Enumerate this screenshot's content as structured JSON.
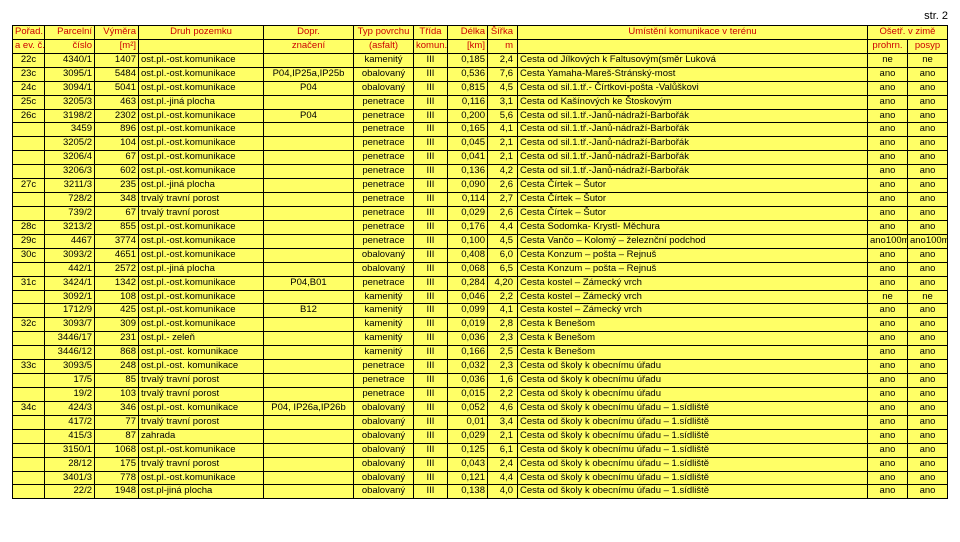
{
  "page": {
    "number": "str. 2"
  },
  "style": {
    "bg": "#ffff66",
    "headerText": "#cc0000",
    "bodyText": "#000000",
    "border": "#000000",
    "fontSize": 9.5
  },
  "header": {
    "r1": {
      "c0": "Pořad.",
      "c1": "Parcelní",
      "c2": "Výměra",
      "c3": "Druh pozemku",
      "c4": "Dopr.",
      "c5": "Typ povrchu",
      "c6": "Třída",
      "c7": "Délka",
      "c8": "Šířka",
      "c9": "Umístění komunikace v terénu",
      "c10": "Ošetř. v zimě"
    },
    "r2": {
      "c0": "a ev. č.",
      "c1": "číslo",
      "c2": "[m²]",
      "c4": "značení",
      "c5": "(asfalt)",
      "c6": "komun.",
      "c7": "[km]",
      "c8": "m",
      "c10": "prohrn.",
      "c11": "posyp"
    }
  },
  "columns": [
    "ev",
    "parc",
    "vym",
    "druh",
    "dopr",
    "typ",
    "trida",
    "delka",
    "sirka",
    "umist",
    "os1",
    "os2"
  ],
  "rows": [
    [
      "22c",
      "4340/1",
      "1407",
      "ost.pl.-ost.komunikace",
      "",
      "kamenitý",
      "III",
      "0,185",
      "2,4",
      "Cesta od Jílkových k Faltusovým(směr Luková",
      "ne",
      "ne"
    ],
    [
      "23c",
      "3095/1",
      "5484",
      "ost.pl.-ost.komunikace",
      "P04,IP25a,IP25b",
      "obalovaný",
      "III",
      "0,536",
      "7,6",
      "Cesta Yamaha-Mareš-Stránský-most",
      "ano",
      "ano"
    ],
    [
      "24c",
      "3094/1",
      "5041",
      "ost.pl.-ost.komunikace",
      "P04",
      "obalovaný",
      "III",
      "0,815",
      "4,5",
      "Cesta od sil.1.tř.- Čírtkovi-pošta -Valůškovi",
      "ano",
      "ano"
    ],
    [
      "25c",
      "3205/3",
      "463",
      "ost.pl.-jiná plocha",
      "",
      "penetrace",
      "III",
      "0,116",
      "3,1",
      "Cesta od Kašínových ke Štoskovým",
      "ano",
      "ano"
    ],
    [
      "26c",
      "3198/2",
      "2302",
      "ost.pl.-ost.komunikace",
      "P04",
      "penetrace",
      "III",
      "0,200",
      "5,6",
      "Cesta od sil.1.tř.-Janů-nádraží-Barbořák",
      "ano",
      "ano"
    ],
    [
      "",
      "3459",
      "896",
      "ost.pl.-ost.komunikace",
      "",
      "penetrace",
      "III",
      "0,165",
      "4,1",
      "Cesta od sil.1.tř.-Janů-nádraží-Barbořák",
      "ano",
      "ano"
    ],
    [
      "",
      "3205/2",
      "104",
      "ost.pl.-ost.komunikace",
      "",
      "penetrace",
      "III",
      "0,045",
      "2,1",
      "Cesta od sil.1.tř.-Janů-nádraží-Barbořák",
      "ano",
      "ano"
    ],
    [
      "",
      "3206/4",
      "67",
      "ost.pl.-ost.komunikace",
      "",
      "penetrace",
      "III",
      "0,041",
      "2,1",
      "Cesta od sil.1.tř.-Janů-nádraží-Barbořák",
      "ano",
      "ano"
    ],
    [
      "",
      "3206/3",
      "602",
      "ost.pl.-ost.komunikace",
      "",
      "penetrace",
      "III",
      "0,136",
      "4,2",
      "Cesta od sil.1.tř.-Janů-nádraží-Barbořák",
      "ano",
      "ano"
    ],
    [
      "27c",
      "3211/3",
      "235",
      "ost.pl.-jiná plocha",
      "",
      "penetrace",
      "III",
      "0,090",
      "2,6",
      "Cesta Čírtek – Šutor",
      "ano",
      "ano"
    ],
    [
      "",
      "728/2",
      "348",
      "trvalý travní porost",
      "",
      "penetrace",
      "III",
      "0,114",
      "2,7",
      "Cesta Čírtek – Šutor",
      "ano",
      "ano"
    ],
    [
      "",
      "739/2",
      "67",
      "trvalý travní porost",
      "",
      "penetrace",
      "III",
      "0,029",
      "2,6",
      "Cesta Čírtek – Šutor",
      "ano",
      "ano"
    ],
    [
      "28c",
      "3213/2",
      "855",
      "ost.pl.-ost.komunikace",
      "",
      "penetrace",
      "III",
      "0,176",
      "4,4",
      "Cesta Sodomka- Krystl- Měchura",
      "ano",
      "ano"
    ],
    [
      "29c",
      "4467",
      "3774",
      "ost.pl.-ost.komunikace",
      "",
      "penetrace",
      "III",
      "0,100",
      "4,5",
      "Cesta Vančo – Kolomý – železnční podchod",
      "ano100m",
      "ano100m"
    ],
    [
      "30c",
      "3093/2",
      "4651",
      "ost.pl.-ost.komunikace",
      "",
      "obalovaný",
      "III",
      "0,408",
      "6,0",
      "Cesta Konzum – pošta – Rejnuš",
      "ano",
      "ano"
    ],
    [
      "",
      "442/1",
      "2572",
      "ost.pl.-jiná plocha",
      "",
      "obalovaný",
      "III",
      "0,068",
      "6,5",
      "Cesta Konzum – pošta – Rejnuš",
      "ano",
      "ano"
    ],
    [
      "31c",
      "3424/1",
      "1342",
      "ost.pl.-ost.komunikace",
      "P04,B01",
      "penetrace",
      "III",
      "0,284",
      "4,20",
      "Cesta kostel – Zámecký vrch",
      "ano",
      "ano"
    ],
    [
      "",
      "3092/1",
      "108",
      "ost.pl.-ost.komunikace",
      "",
      "kamenitý",
      "III",
      "0,046",
      "2,2",
      "Cesta kostel – Zámecký vrch",
      "ne",
      "ne"
    ],
    [
      "",
      "1712/9",
      "425",
      "ost.pl.-ost.komunikace",
      "B12",
      "kamenitý",
      "III",
      "0,099",
      "4,1",
      "Cesta kostel – Zámecký vrch",
      "ano",
      "ano"
    ],
    [
      "32c",
      "3093/7",
      "309",
      "ost.pl.-ost.komunikace",
      "",
      "kamenitý",
      "III",
      "0,019",
      "2,8",
      "Cesta k Benešom",
      "ano",
      "ano"
    ],
    [
      "",
      "3446/17",
      "231",
      "ost.pl.- zeleň",
      "",
      "kamenitý",
      "III",
      "0,036",
      "2,3",
      "Cesta k Benešom",
      "ano",
      "ano"
    ],
    [
      "",
      "3446/12",
      "868",
      "ost.pl.-ost. komunikace",
      "",
      "kamenitý",
      "III",
      "0,166",
      "2,5",
      "Cesta k Benešom",
      "ano",
      "ano"
    ],
    [
      "33c",
      "3093/5",
      "248",
      "ost.pl.-ost. komunikace",
      "",
      "penetrace",
      "III",
      "0,032",
      "2,3",
      "Cesta od školy k obecnímu úřadu",
      "ano",
      "ano"
    ],
    [
      "",
      "17/5",
      "85",
      "trvalý travní porost",
      "",
      "penetrace",
      "III",
      "0,036",
      "1,6",
      "Cesta od školy k obecnímu úřadu",
      "ano",
      "ano"
    ],
    [
      "",
      "19/2",
      "103",
      "trvalý travní porost",
      "",
      "penetrace",
      "III",
      "0,015",
      "2,2",
      "Cesta od školy k obecnímu úřadu",
      "ano",
      "ano"
    ],
    [
      "34c",
      "424/3",
      "346",
      "ost.pl.-ost. komunikace",
      "P04, IP26a,IP26b",
      "obalovaný",
      "III",
      "0,052",
      "4,6",
      "Cesta od školy k obecnímu úřadu – 1.sídliště",
      "ano",
      "ano"
    ],
    [
      "",
      "417/2",
      "77",
      "trvalý travní porost",
      "",
      "obalovaný",
      "III",
      "0,01",
      "3,4",
      "Cesta od školy k obecnímu úřadu – 1.sídliště",
      "ano",
      "ano"
    ],
    [
      "",
      "415/3",
      "87",
      "zahrada",
      "",
      "obalovaný",
      "III",
      "0,029",
      "2,1",
      "Cesta od školy k obecnímu úřadu – 1.sídliště",
      "ano",
      "ano"
    ],
    [
      "",
      "3150/1",
      "1068",
      "ost.pl.-ost.komunikace",
      "",
      "obalovaný",
      "III",
      "0,125",
      "6,1",
      "Cesta od školy k obecnímu úřadu – 1.sídliště",
      "ano",
      "ano"
    ],
    [
      "",
      "28/12",
      "175",
      "trvalý travní porost",
      "",
      "obalovaný",
      "III",
      "0,043",
      "2,4",
      "Cesta od školy k obecnímu úřadu – 1.sídliště",
      "ano",
      "ano"
    ],
    [
      "",
      "3401/3",
      "778",
      "ost.pl.-ost.komunikace",
      "",
      "obalovaný",
      "III",
      "0,121",
      "4,4",
      "Cesta od školy k obecnímu úřadu – 1.sídliště",
      "ano",
      "ano"
    ],
    [
      "",
      "22/2",
      "1948",
      "ost.pl-jiná plocha",
      "",
      "obalovaný",
      "III",
      "0,138",
      "4,0",
      "Cesta od školy k obecnímu úřadu – 1.sídliště",
      "ano",
      "ano"
    ]
  ]
}
